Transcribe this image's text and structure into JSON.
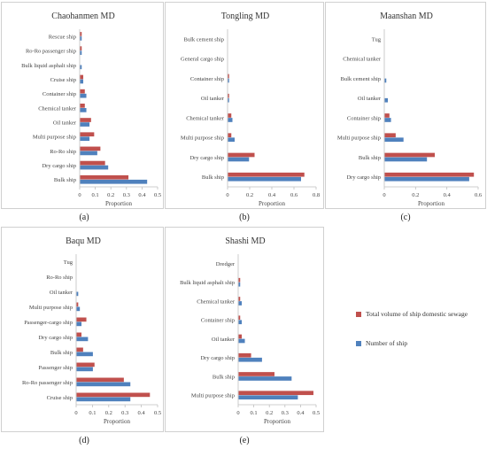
{
  "legend": {
    "items": [
      {
        "label": "Total volume of ship domestic sewage",
        "color": "#c0504d"
      },
      {
        "label": "Number of ship",
        "color": "#4f81bd"
      }
    ]
  },
  "chart_data": [
    {
      "id": "a",
      "panel_label": "(a)",
      "type": "bar",
      "orientation": "horizontal",
      "title": "Chaohanmen MD",
      "xlabel": "Proportion",
      "xlim": [
        0,
        0.5
      ],
      "xticks": [
        "0",
        "0.1",
        "0.2",
        "0.3",
        "0.4",
        "0.5"
      ],
      "categories": [
        "Rescue ship",
        "Ro-Ro passenger ship",
        "Bulk liquid asphalt ship",
        "Cruise ship",
        "Container ship",
        "Chemical tanker",
        "Oil tanker",
        "Multi purpose ship",
        "Ro-Ro ship",
        "Dry cargo ship",
        "Bulk ship"
      ],
      "series": [
        {
          "name": "Total volume of ship domestic sewage",
          "values": [
            0.01,
            0.01,
            0.0,
            0.02,
            0.03,
            0.03,
            0.07,
            0.09,
            0.13,
            0.16,
            0.31
          ]
        },
        {
          "name": "Number of ship",
          "values": [
            0.01,
            0.01,
            0.01,
            0.02,
            0.04,
            0.04,
            0.06,
            0.06,
            0.11,
            0.18,
            0.43
          ]
        }
      ]
    },
    {
      "id": "b",
      "panel_label": "(b)",
      "type": "bar",
      "orientation": "horizontal",
      "title": "Tongling MD",
      "xlabel": "Proportion",
      "xlim": [
        0,
        0.8
      ],
      "xticks": [
        "0",
        "0.2",
        "0.4",
        "0.6",
        "0.8"
      ],
      "categories": [
        "Bulk cement ship",
        "General cargo ship",
        "Container ship",
        "Oil tanker",
        "Chemical tanker",
        "Multi purpose ship",
        "Dry cargo ship",
        "Bulk ship"
      ],
      "series": [
        {
          "name": "Total volume of ship domestic sewage",
          "values": [
            0.0,
            0.0,
            0.01,
            0.01,
            0.03,
            0.03,
            0.24,
            0.69
          ]
        },
        {
          "name": "Number of ship",
          "values": [
            0.0,
            0.0,
            0.01,
            0.01,
            0.04,
            0.06,
            0.19,
            0.66
          ]
        }
      ]
    },
    {
      "id": "c",
      "panel_label": "(c)",
      "type": "bar",
      "orientation": "horizontal",
      "title": "Maanshan MD",
      "xlabel": "Proportion",
      "xlim": [
        0,
        0.6
      ],
      "xticks": [
        "0",
        "0.2",
        "0.4",
        "0.6"
      ],
      "categories": [
        "Tug",
        "Chemical tanker",
        "Bulk cement ship",
        "Oil tanker",
        "Container ship",
        "Multi purpose ship",
        "Bulk ship",
        "Dry cargo ship"
      ],
      "series": [
        {
          "name": "Total volume of ship domestic sewage",
          "values": [
            0.0,
            0.0,
            0.0,
            0.0,
            0.03,
            0.07,
            0.32,
            0.57
          ]
        },
        {
          "name": "Number of ship",
          "values": [
            0.0,
            0.0,
            0.01,
            0.02,
            0.04,
            0.12,
            0.27,
            0.54
          ]
        }
      ]
    },
    {
      "id": "d",
      "panel_label": "(d)",
      "type": "bar",
      "orientation": "horizontal",
      "title": "Baqu MD",
      "xlabel": "Proportion",
      "xlim": [
        0,
        0.5
      ],
      "xticks": [
        "0",
        "0.1",
        "0.2",
        "0.3",
        "0.4",
        "0.5"
      ],
      "categories": [
        "Tug",
        "Ro-Ro ship",
        "Oil tanker",
        "Multi purpose ship",
        "Passenger-cargo ship",
        "Dry cargo ship",
        "Bulk ship",
        "Passenger ship",
        "Ro-Ro passenger ship",
        "Cruise ship"
      ],
      "series": [
        {
          "name": "Total volume of ship domestic sewage",
          "values": [
            0.0,
            0.0,
            0.0,
            0.01,
            0.06,
            0.03,
            0.04,
            0.11,
            0.29,
            0.45
          ]
        },
        {
          "name": "Number of ship",
          "values": [
            0.0,
            0.0,
            0.01,
            0.02,
            0.03,
            0.07,
            0.1,
            0.1,
            0.33,
            0.33
          ]
        }
      ]
    },
    {
      "id": "e",
      "panel_label": "(e)",
      "type": "bar",
      "orientation": "horizontal",
      "title": "Shashi MD",
      "xlabel": "Proportion",
      "xlim": [
        0,
        0.5
      ],
      "xticks": [
        "0",
        "0.1",
        "0.2",
        "0.3",
        "0.4",
        "0.5"
      ],
      "categories": [
        "Dredger",
        "Bulk liquid asphalt ship",
        "Chemical tanker",
        "Container ship",
        "Oil tanker",
        "Dry cargo ship",
        "Bulk ship",
        "Multi purpose ship"
      ],
      "series": [
        {
          "name": "Total volume of ship domestic sewage",
          "values": [
            0.0,
            0.01,
            0.01,
            0.01,
            0.02,
            0.08,
            0.23,
            0.48
          ]
        },
        {
          "name": "Number of ship",
          "values": [
            0.0,
            0.01,
            0.02,
            0.02,
            0.04,
            0.15,
            0.34,
            0.38
          ]
        }
      ]
    }
  ]
}
